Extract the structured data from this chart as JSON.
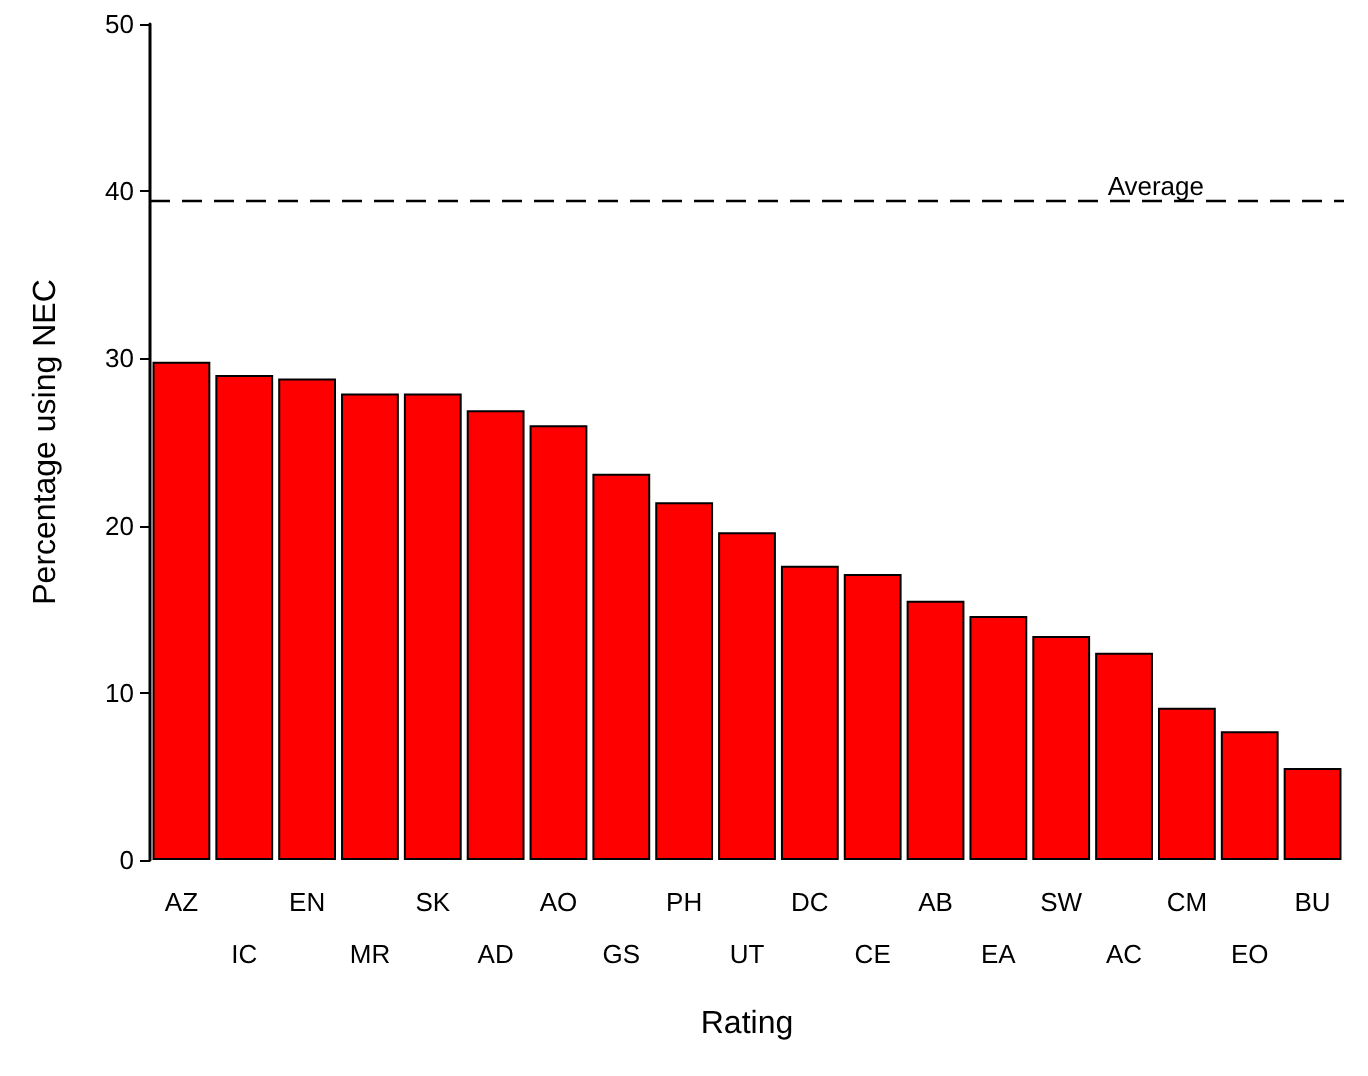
{
  "chart_data": {
    "type": "bar",
    "xlabel": "Rating",
    "ylabel": "Percentage using NEC",
    "categories": [
      "AZ",
      "IC",
      "EN",
      "MR",
      "SK",
      "AD",
      "AO",
      "GS",
      "PH",
      "UT",
      "DC",
      "CE",
      "AB",
      "EA",
      "SW",
      "AC",
      "CM",
      "EO",
      "BU"
    ],
    "values": [
      29.8,
      29.0,
      28.8,
      27.9,
      27.9,
      26.9,
      26.0,
      23.1,
      21.4,
      19.6,
      17.6,
      17.1,
      15.5,
      14.6,
      13.4,
      12.4,
      9.1,
      7.7,
      5.5
    ],
    "color": "#ff0000",
    "ylim": [
      0,
      50
    ],
    "yticks": [
      0,
      10,
      20,
      30,
      40,
      50
    ],
    "grid": false,
    "ref_lines": [
      {
        "axis": "y",
        "value": 39.4,
        "label": "Average",
        "line_style": "dashed",
        "color": "#000000"
      }
    ]
  }
}
